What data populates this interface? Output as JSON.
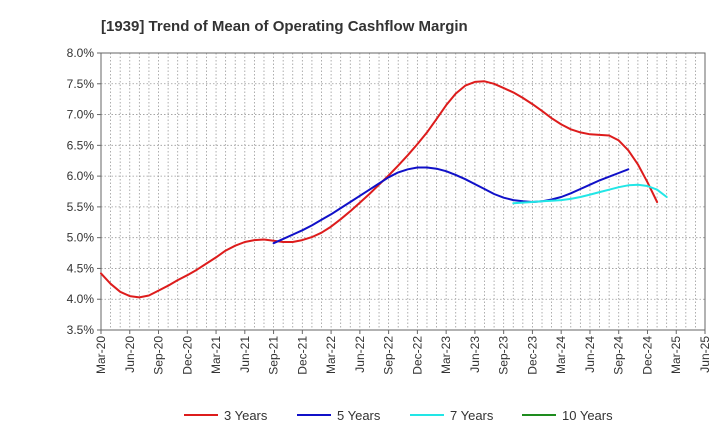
{
  "chart_data": {
    "type": "line",
    "title": "[1939]  Trend of Mean of Operating Cashflow Margin",
    "xlabel": "",
    "ylabel": "",
    "ylim": [
      3.5,
      8.0
    ],
    "y_ticks": [
      3.5,
      4.0,
      4.5,
      5.0,
      5.5,
      6.0,
      6.5,
      7.0,
      7.5,
      8.0
    ],
    "y_tick_labels": [
      "3.5%",
      "4.0%",
      "4.5%",
      "5.0%",
      "5.5%",
      "6.0%",
      "6.5%",
      "7.0%",
      "7.5%",
      "8.0%"
    ],
    "x_tick_labels": [
      "Mar-20",
      "Jun-20",
      "Sep-20",
      "Dec-20",
      "Mar-21",
      "Jun-21",
      "Sep-21",
      "Dec-21",
      "Mar-22",
      "Jun-22",
      "Sep-22",
      "Dec-22",
      "Mar-23",
      "Jun-23",
      "Sep-23",
      "Dec-23",
      "Mar-24",
      "Jun-24",
      "Sep-24",
      "Dec-24",
      "Mar-25",
      "Jun-25"
    ],
    "grid": true,
    "legend_position": "bottom",
    "series": [
      {
        "name": "3 Years",
        "color": "#dd1c1c",
        "x_start_index": 0,
        "values": [
          4.42,
          4.25,
          4.12,
          4.05,
          4.03,
          4.06,
          4.14,
          4.22,
          4.31,
          4.39,
          4.48,
          4.58,
          4.68,
          4.79,
          4.87,
          4.93,
          4.96,
          4.97,
          4.95,
          4.93,
          4.93,
          4.96,
          5.01,
          5.08,
          5.18,
          5.3,
          5.43,
          5.57,
          5.71,
          5.86,
          6.01,
          6.17,
          6.34,
          6.52,
          6.71,
          6.93,
          7.15,
          7.34,
          7.47,
          7.53,
          7.54,
          7.5,
          7.43,
          7.36,
          7.27,
          7.17,
          7.06,
          6.94,
          6.84,
          6.76,
          6.71,
          6.68,
          6.67,
          6.66,
          6.58,
          6.42,
          6.19,
          5.9,
          5.58
        ]
      },
      {
        "name": "5 Years",
        "color": "#1010c8",
        "x_start_index": 18,
        "values": [
          4.91,
          4.98,
          5.05,
          5.12,
          5.2,
          5.29,
          5.38,
          5.48,
          5.58,
          5.68,
          5.78,
          5.88,
          5.98,
          6.06,
          6.11,
          6.14,
          6.14,
          6.12,
          6.08,
          6.02,
          5.95,
          5.87,
          5.79,
          5.71,
          5.65,
          5.61,
          5.59,
          5.58,
          5.59,
          5.62,
          5.66,
          5.72,
          5.79,
          5.86,
          5.93,
          5.99,
          6.05,
          6.11
        ]
      },
      {
        "name": "7 Years",
        "color": "#22e6e6",
        "x_start_index": 43,
        "values": [
          5.56,
          5.57,
          5.58,
          5.59,
          5.6,
          5.61,
          5.63,
          5.66,
          5.7,
          5.74,
          5.78,
          5.82,
          5.85,
          5.86,
          5.84,
          5.78,
          5.66
        ]
      },
      {
        "name": "10 Years",
        "color": "#1e8c1e",
        "x_start_index": 0,
        "values": []
      }
    ]
  }
}
